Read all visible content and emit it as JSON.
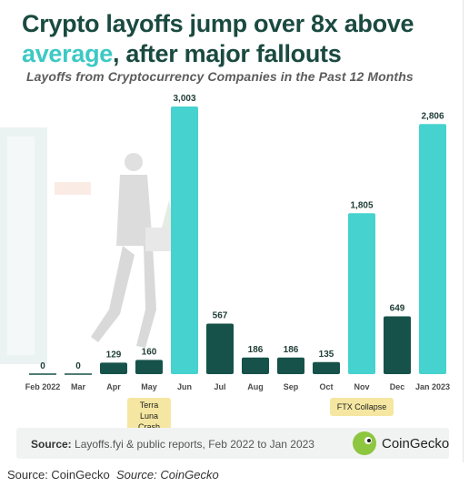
{
  "title": {
    "part1": "Crypto layoffs jump over 8x above",
    "part2a": "average",
    "part2b": ", after major fallouts"
  },
  "subtitle": "Layoffs from Cryptocurrency Companies in the Past 12 Months",
  "annotations": {
    "terra": "Terra Luna Crash",
    "ftx": "FTX Collapse"
  },
  "source": {
    "label": "Source:",
    "text": "Layoffs.fyi & public reports, Feb 2022 to Jan 2023"
  },
  "brand": "CoinGecko",
  "caption": {
    "left": "Source: CoinGecko",
    "right": "Source: CoinGecko"
  },
  "colors": {
    "teal": "#46d2cf",
    "dark": "#16524a",
    "title_dark": "#1a4a40",
    "accent": "#3cc9c4"
  },
  "chart_data": {
    "type": "bar",
    "categories": [
      "Feb 2022",
      "Mar",
      "Apr",
      "May",
      "Jun",
      "Jul",
      "Aug",
      "Sep",
      "Oct",
      "Nov",
      "Dec",
      "Jan 2023"
    ],
    "values": [
      0,
      0,
      129,
      160,
      3003,
      567,
      186,
      186,
      135,
      1805,
      649,
      2806
    ],
    "value_labels": [
      "0",
      "0",
      "129",
      "160",
      "3,003",
      "567",
      "186",
      "186",
      "135",
      "1,805",
      "649",
      "2,806"
    ],
    "highlight": [
      false,
      false,
      false,
      false,
      true,
      false,
      false,
      false,
      false,
      true,
      false,
      true
    ],
    "ylim": [
      0,
      3003
    ]
  }
}
